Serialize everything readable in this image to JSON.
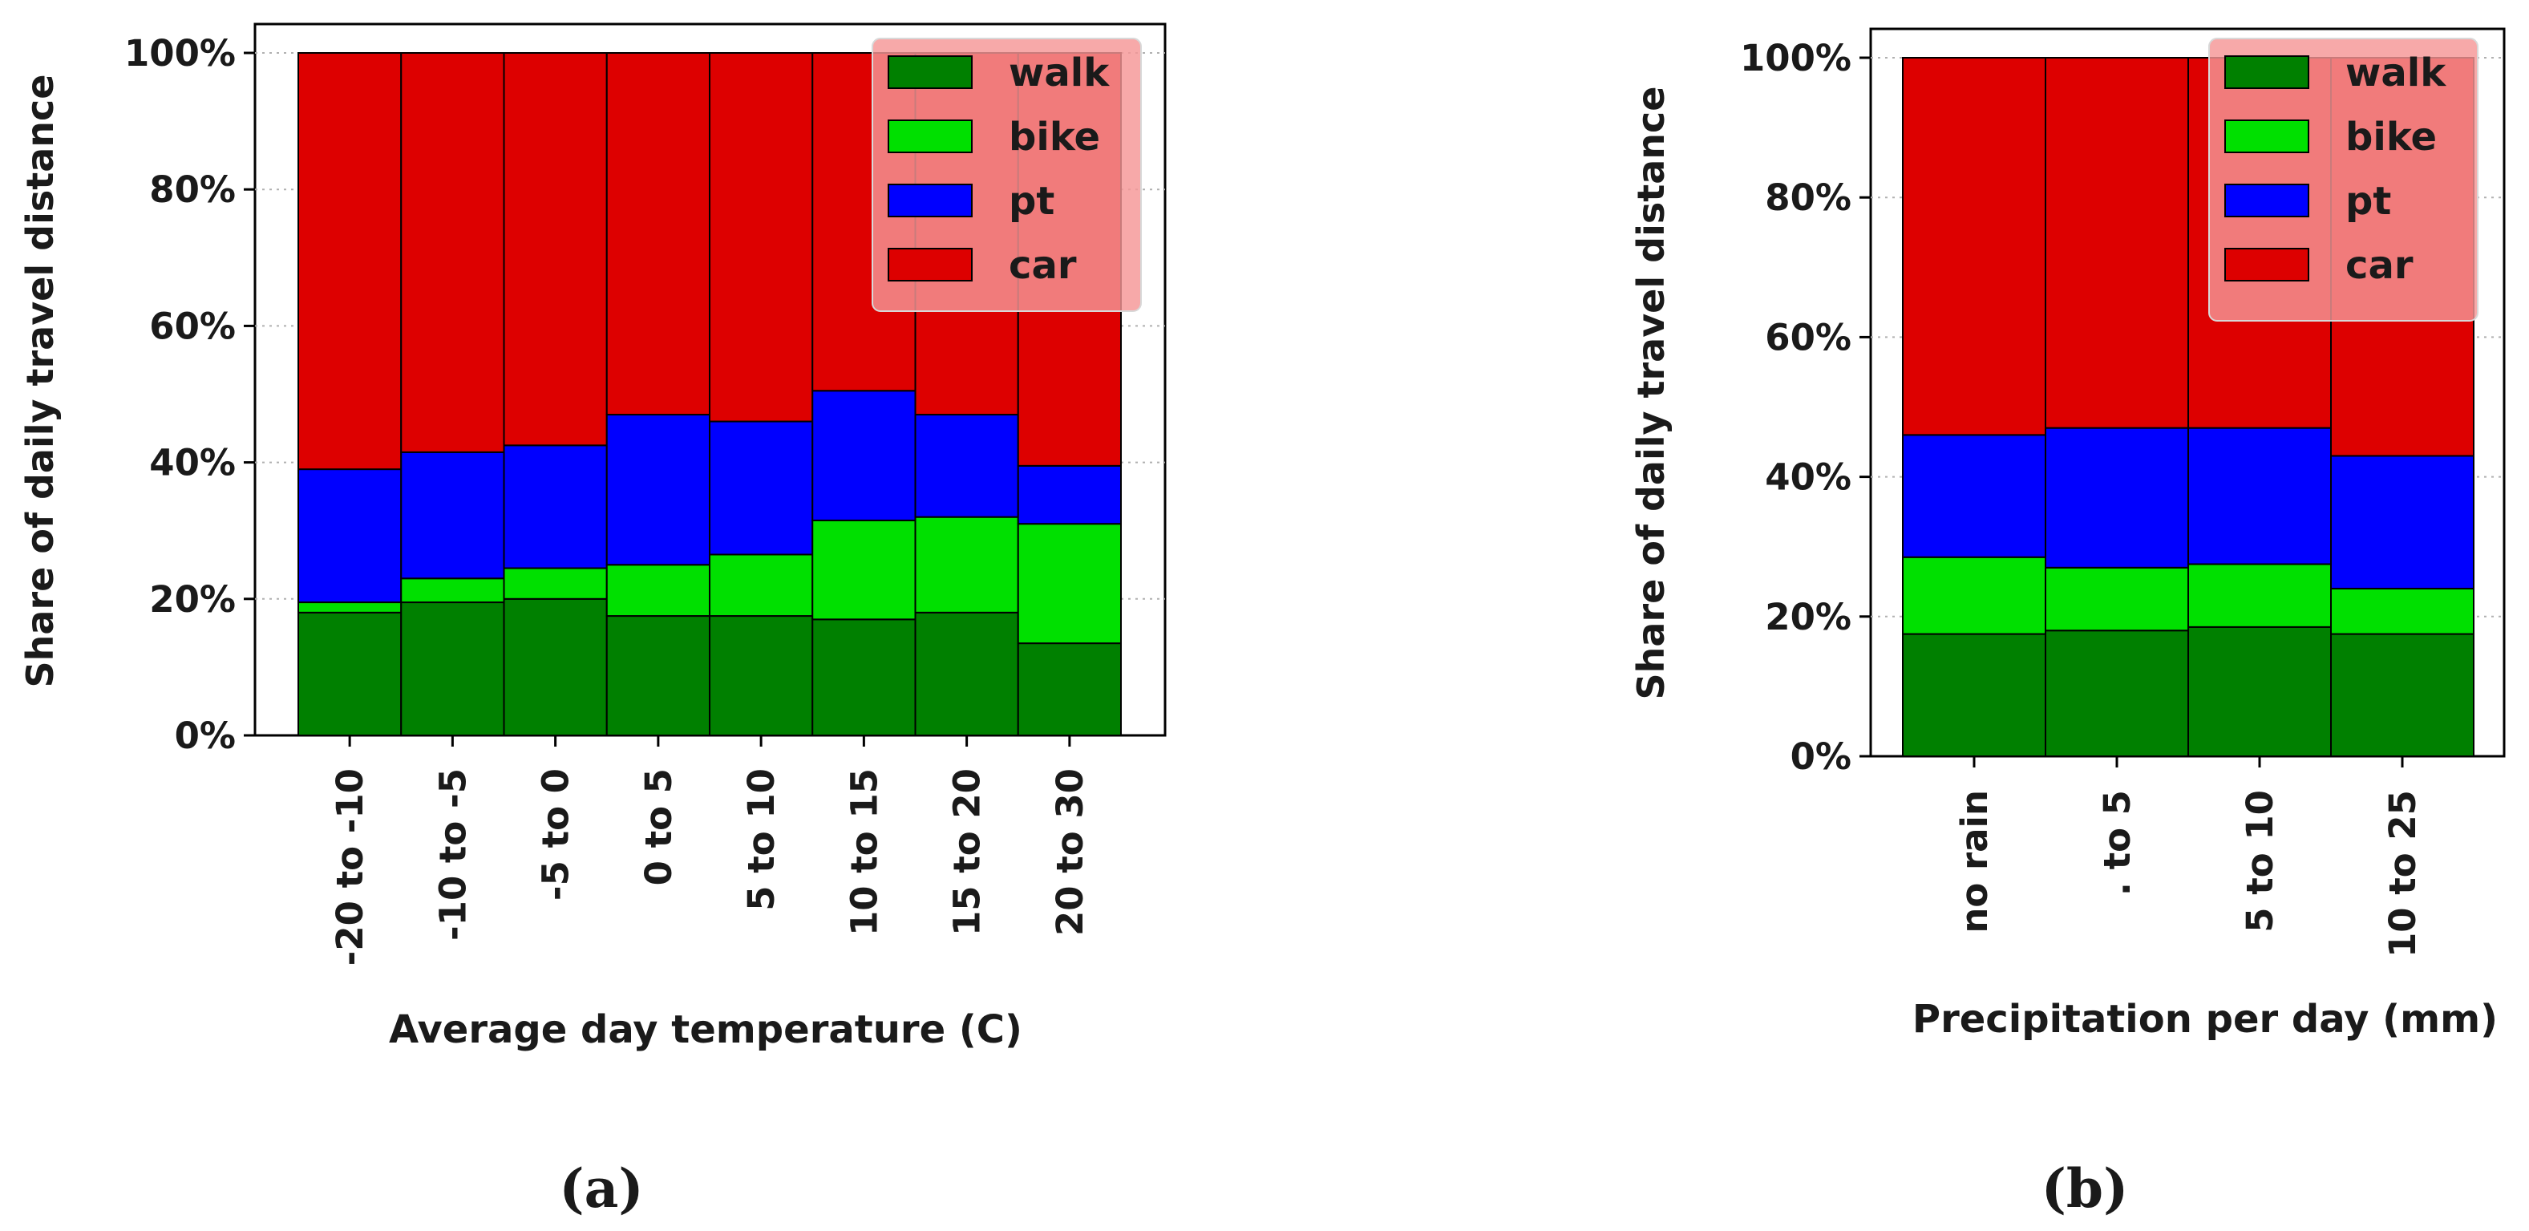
{
  "chart_data": [
    {
      "type": "bar",
      "stacked": true,
      "panel_label": "(a)",
      "xlabel": "Average day temperature (C)",
      "ylabel": "Share of daily travel distance",
      "ylim": [
        0,
        100
      ],
      "yticks": [
        "0%",
        "20%",
        "40%",
        "60%",
        "80%",
        "100%"
      ],
      "grid": "horizontal dotted",
      "legend_position": "top-right",
      "categories": [
        "-20 to -10",
        "-10 to -5",
        "-5 to 0",
        "0 to 5",
        "5 to 10",
        "10 to 15",
        "15 to 20",
        "20 to 30"
      ],
      "series": [
        {
          "name": "walk",
          "color": "#008000",
          "values": [
            18,
            19.5,
            20,
            17.5,
            17.5,
            17,
            18,
            13.5
          ]
        },
        {
          "name": "bike",
          "color": "#00e000",
          "values": [
            1.5,
            3.5,
            4.5,
            7.5,
            9,
            14.5,
            14,
            17.5
          ]
        },
        {
          "name": "pt",
          "color": "#0000ff",
          "values": [
            19.5,
            18.5,
            18,
            22,
            19.5,
            19,
            15,
            8.5
          ]
        },
        {
          "name": "car",
          "color": "#dd0000",
          "values": [
            61,
            58.5,
            57.5,
            53,
            54,
            49.5,
            53,
            60.5
          ]
        }
      ]
    },
    {
      "type": "bar",
      "stacked": true,
      "panel_label": "(b)",
      "xlabel": "Precipitation per day (mm)",
      "ylabel": "Share of daily travel distance",
      "ylim": [
        0,
        100
      ],
      "yticks": [
        "0%",
        "20%",
        "40%",
        "60%",
        "80%",
        "100%"
      ],
      "grid": "horizontal dotted",
      "legend_position": "top-right",
      "categories": [
        "no rain",
        ". to 5",
        "5 to 10",
        "10 to 25"
      ],
      "series": [
        {
          "name": "walk",
          "color": "#008000",
          "values": [
            17.5,
            18,
            18.5,
            17.5
          ]
        },
        {
          "name": "bike",
          "color": "#00e000",
          "values": [
            11,
            9,
            9,
            6.5
          ]
        },
        {
          "name": "pt",
          "color": "#0000ff",
          "values": [
            17.5,
            20,
            19.5,
            19
          ]
        },
        {
          "name": "car",
          "color": "#dd0000",
          "values": [
            54,
            53,
            53,
            57
          ]
        }
      ]
    }
  ]
}
